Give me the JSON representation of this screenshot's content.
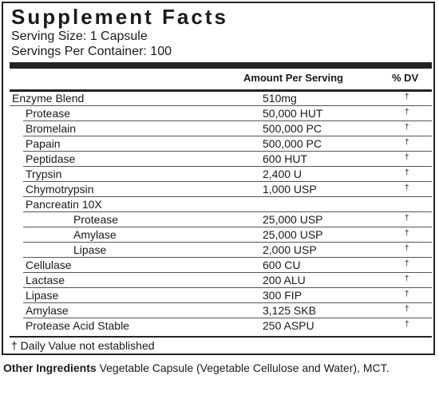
{
  "facts": {
    "title": "Supplement Facts",
    "serving_size": "Serving Size: 1 Capsule",
    "servings_per_container": "Servings Per Container: 100",
    "header_amount": "Amount Per Serving",
    "header_dv": "% DV",
    "rows": [
      {
        "name": "Enzyme Blend",
        "amount": "510mg",
        "dv": "†",
        "indent": 0
      },
      {
        "name": "Protease",
        "amount": "50,000 HUT",
        "dv": "†",
        "indent": 1
      },
      {
        "name": "Bromelain",
        "amount": "500,000 PC",
        "dv": "†",
        "indent": 1
      },
      {
        "name": "Papain",
        "amount": "500,000 PC",
        "dv": "†",
        "indent": 1
      },
      {
        "name": "Peptidase",
        "amount": "600 HUT",
        "dv": "†",
        "indent": 1
      },
      {
        "name": "Trypsin",
        "amount": "2,400 U",
        "dv": "†",
        "indent": 1
      },
      {
        "name": "Chymotrypsin",
        "amount": "1,000 USP",
        "dv": "†",
        "indent": 1
      },
      {
        "name": "Pancreatin 10X",
        "amount": "",
        "dv": "",
        "indent": 1
      },
      {
        "name": "Protease",
        "amount": "25,000 USP",
        "dv": "†",
        "indent": 2
      },
      {
        "name": "Amylase",
        "amount": "25,000 USP",
        "dv": "†",
        "indent": 2
      },
      {
        "name": "Lipase",
        "amount": "2,000 USP",
        "dv": "†",
        "indent": 2
      },
      {
        "name": "Cellulase",
        "amount": "600 CU",
        "dv": "†",
        "indent": 1
      },
      {
        "name": "Lactase",
        "amount": "200 ALU",
        "dv": "†",
        "indent": 1
      },
      {
        "name": "Lipase",
        "amount": "300 FIP",
        "dv": "†",
        "indent": 1
      },
      {
        "name": "Amylase",
        "amount": "3,125 SKB",
        "dv": "†",
        "indent": 1
      },
      {
        "name": "Protease Acid Stable",
        "amount": "250 ASPU",
        "dv": "†",
        "indent": 1
      }
    ],
    "footnote": "† Daily Value not established"
  },
  "other": {
    "label": "Other Ingredients",
    "text": "Vegetable Capsule (Vegetable Cellulose and Water), MCT."
  }
}
